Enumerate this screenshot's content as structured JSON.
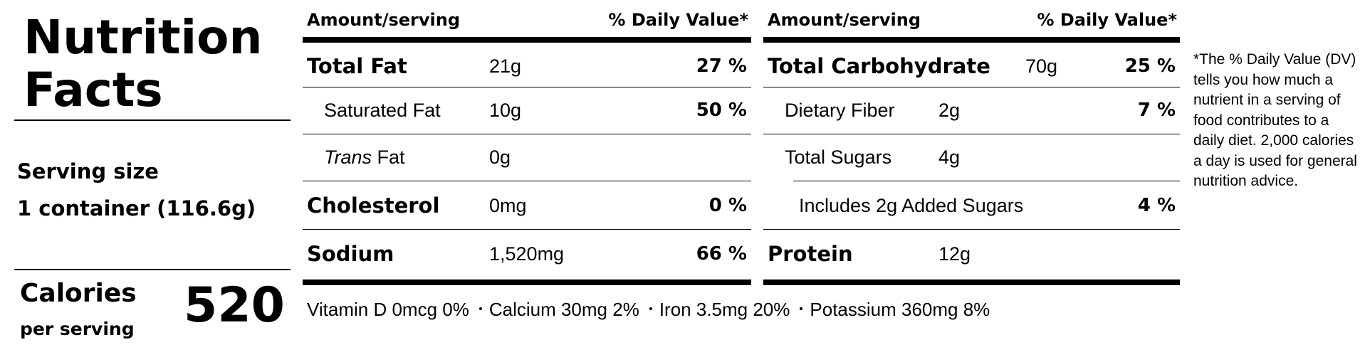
{
  "label": {
    "title_line1": "Nutrition",
    "title_line2": "Facts",
    "serving_size_label": "Serving size",
    "serving_size_value": "1 container (116.6g)",
    "calories_label": "Calories",
    "calories_sub": "per serving",
    "calories_value": "520"
  },
  "left_table": {
    "header_amount": "Amount/serving",
    "header_dv": "% Daily Value*",
    "rows": [
      {
        "name": "Total Fat",
        "amount": "21g",
        "dv": "27 %"
      },
      {
        "name": "Saturated Fat",
        "amount": "10g",
        "dv": "50 %"
      },
      {
        "name_italic": "Trans",
        "name": " Fat",
        "amount": "0g",
        "dv": ""
      },
      {
        "name": "Cholesterol",
        "amount": "0mg",
        "dv": "0 %"
      },
      {
        "name": "Sodium",
        "amount": "1,520mg",
        "dv": "66 %"
      }
    ]
  },
  "right_table": {
    "header_amount": "Amount/serving",
    "header_dv": "% Daily Value*",
    "rows": [
      {
        "name": "Total Carbohydrate",
        "amount": "70g",
        "dv": "25 %"
      },
      {
        "name": "Dietary Fiber",
        "amount": "2g",
        "dv": "7 %"
      },
      {
        "name": "Total Sugars",
        "amount": "4g",
        "dv": ""
      },
      {
        "name": "Includes 2g Added Sugars",
        "amount": "",
        "dv": "4 %"
      },
      {
        "name": "Protein",
        "amount": "12g",
        "dv": ""
      }
    ]
  },
  "footer": {
    "vitamin_d": "Vitamin D 0mcg 0%",
    "calcium": "Calcium 30mg 2%",
    "iron": "Iron 3.5mg 20%",
    "potassium": "Potassium 360mg 8%"
  },
  "footnote": "*The % Daily Value (DV) tells you how much a nutrient in a serving of food contributes to a daily diet. 2,000 calories a day is used for general nutrition advice."
}
